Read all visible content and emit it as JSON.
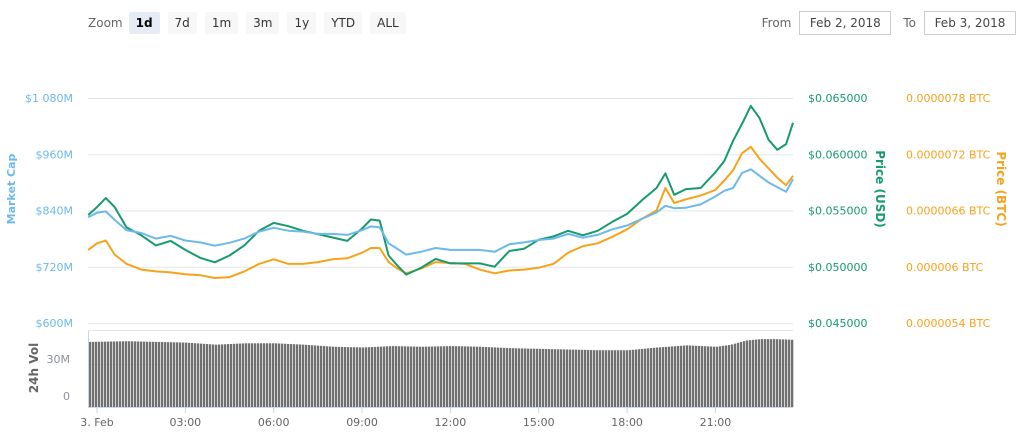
{
  "toolbar": {
    "zoom_label": "Zoom",
    "buttons": [
      "1d",
      "7d",
      "1m",
      "3m",
      "1y",
      "YTD",
      "ALL"
    ],
    "active": "1d"
  },
  "range": {
    "from_label": "From",
    "from_value": "Feb 2, 2018",
    "to_label": "To",
    "to_value": "Feb 3, 2018"
  },
  "colors": {
    "market_cap": "#6cb9ea",
    "price_usd": "#169a6e",
    "price_btc": "#f7a21c",
    "volume": "#707070",
    "grid": "#e6e6e6",
    "axis_line": "#ccd6eb"
  },
  "chart_data": [
    {
      "type": "line",
      "title": "",
      "x": [
        "3. Feb",
        "03:00",
        "06:00",
        "09:00",
        "12:00",
        "15:00",
        "18:00",
        "21:00"
      ],
      "xlabel": "",
      "axes": {
        "market_cap": {
          "label": "Market Cap",
          "ticks": [
            "$1 080M",
            "$960M",
            "$840M",
            "$720M",
            "$600M"
          ],
          "range": [
            600,
            1080
          ],
          "unit": "M USD"
        },
        "price_usd": {
          "label": "Price (USD)",
          "ticks": [
            "$0.065000",
            "$0.060000",
            "$0.055000",
            "$0.050000",
            "$0.045000"
          ],
          "range": [
            0.045,
            0.065
          ]
        },
        "price_btc": {
          "label": "Price (BTC)",
          "ticks": [
            "0.0000078 BTC",
            "0.0000072 BTC",
            "0.0000066 BTC",
            "0.000006 BTC",
            "0.0000054 BTC"
          ],
          "range": [
            5.4e-06,
            7.8e-06
          ]
        }
      },
      "grid": true,
      "hours": [
        -0.3,
        0,
        0.3,
        0.6,
        1,
        1.5,
        2,
        2.5,
        3,
        3.5,
        4,
        4.5,
        5,
        5.5,
        6,
        6.5,
        7,
        7.5,
        8,
        8.5,
        9,
        9.3,
        9.6,
        9.9,
        10.2,
        10.5,
        11,
        11.5,
        12,
        12.5,
        13,
        13.5,
        14,
        14.5,
        15,
        15.5,
        16,
        16.5,
        17,
        17.5,
        18,
        18.5,
        19,
        19.3,
        19.6,
        20,
        20.5,
        21,
        21.3,
        21.6,
        21.9,
        22.2,
        22.5,
        22.8,
        23.1,
        23.4,
        23.65
      ],
      "series": [
        {
          "name": "Price (USD)",
          "axis": "price_usd",
          "values": [
            0.0546,
            0.0553,
            0.0561,
            0.0553,
            0.0535,
            0.0528,
            0.0519,
            0.0523,
            0.0515,
            0.0508,
            0.0504,
            0.051,
            0.0519,
            0.0532,
            0.0539,
            0.0536,
            0.0532,
            0.0529,
            0.0526,
            0.0523,
            0.0534,
            0.0542,
            0.0541,
            0.051,
            0.0501,
            0.0493,
            0.0499,
            0.0507,
            0.0503,
            0.0503,
            0.0503,
            0.05,
            0.0514,
            0.0516,
            0.0524,
            0.0527,
            0.0532,
            0.0528,
            0.0532,
            0.054,
            0.0547,
            0.0559,
            0.057,
            0.0583,
            0.0564,
            0.0569,
            0.057,
            0.0584,
            0.0594,
            0.0612,
            0.0627,
            0.0643,
            0.0632,
            0.0613,
            0.0604,
            0.0609,
            0.0628
          ]
        },
        {
          "name": "Market Cap",
          "axis": "market_cap",
          "values": [
            826,
            835,
            838,
            820,
            798,
            792,
            780,
            786,
            776,
            772,
            765,
            771,
            780,
            795,
            803,
            797,
            795,
            790,
            790,
            788,
            798,
            806,
            804,
            770,
            758,
            746,
            752,
            760,
            756,
            756,
            756,
            752,
            768,
            772,
            777,
            780,
            790,
            782,
            788,
            800,
            808,
            822,
            836,
            850,
            845,
            846,
            853,
            870,
            882,
            888,
            920,
            928,
            914,
            900,
            890,
            880,
            907
          ]
        },
        {
          "name": "Price (BTC)",
          "axis": "price_btc",
          "values": [
            6.18e-06,
            6.25e-06,
            6.28e-06,
            6.13e-06,
            6.03e-06,
            5.97e-06,
            5.95e-06,
            5.94e-06,
            5.92e-06,
            5.91e-06,
            5.88e-06,
            5.89e-06,
            5.95e-06,
            6.03e-06,
            6.08e-06,
            6.03e-06,
            6.03e-06,
            6.05e-06,
            6.08e-06,
            6.09e-06,
            6.15e-06,
            6.2e-06,
            6.2e-06,
            6.05e-06,
            5.98e-06,
            5.93e-06,
            5.98e-06,
            6.05e-06,
            6.04e-06,
            6.03e-06,
            5.97e-06,
            5.93e-06,
            5.96e-06,
            5.97e-06,
            5.99e-06,
            6.03e-06,
            6.15e-06,
            6.22e-06,
            6.25e-06,
            6.32e-06,
            6.4e-06,
            6.51e-06,
            6.6e-06,
            6.84e-06,
            6.68e-06,
            6.72e-06,
            6.76e-06,
            6.82e-06,
            6.92e-06,
            7.03e-06,
            7.21e-06,
            7.28e-06,
            7.15e-06,
            7.05e-06,
            6.95e-06,
            6.87e-06,
            6.97e-06
          ]
        }
      ]
    },
    {
      "type": "bar",
      "title": "",
      "ylabel": "24h Vol",
      "ticks": [
        "30M",
        "0"
      ],
      "range": [
        0,
        45
      ],
      "unit": "M USD",
      "hours": [
        -0.3,
        1,
        2,
        3,
        4,
        5,
        6,
        7,
        8,
        9,
        10,
        11,
        12,
        13,
        14,
        15,
        16,
        17,
        18,
        19,
        20,
        21,
        21.5,
        22,
        22.5,
        23,
        23.65
      ],
      "values": [
        47,
        47.5,
        47,
        46.5,
        45,
        46,
        46,
        45,
        43.5,
        43,
        44,
        43.5,
        44,
        43.5,
        42.5,
        42,
        41.5,
        41,
        41,
        43,
        44.5,
        43.5,
        45,
        48,
        49,
        49,
        48.5
      ]
    }
  ],
  "xaxis_labels": [
    "3. Feb",
    "03:00",
    "06:00",
    "09:00",
    "12:00",
    "15:00",
    "18:00",
    "21:00"
  ]
}
